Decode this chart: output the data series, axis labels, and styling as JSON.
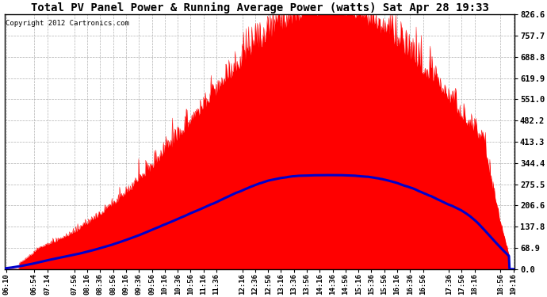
{
  "title": "Total PV Panel Power & Running Average Power (watts) Sat Apr 28 19:33",
  "copyright": "Copyright 2012 Cartronics.com",
  "bg_color": "#ffffff",
  "plot_bg_color": "#ffffff",
  "grid_color": "#aaaaaa",
  "fill_color": "#ff0000",
  "line_color": "#0000cc",
  "yticks": [
    0.0,
    68.9,
    137.8,
    206.6,
    275.5,
    344.4,
    413.3,
    482.2,
    551.0,
    619.9,
    688.8,
    757.7,
    826.6
  ],
  "ylim": [
    0.0,
    826.6
  ],
  "xtick_labels": [
    "06:10",
    "06:54",
    "07:14",
    "07:56",
    "08:16",
    "08:36",
    "08:56",
    "09:16",
    "09:36",
    "09:56",
    "10:16",
    "10:36",
    "10:56",
    "11:16",
    "11:36",
    "12:16",
    "12:36",
    "12:56",
    "13:16",
    "13:36",
    "13:56",
    "14:16",
    "14:36",
    "14:56",
    "15:16",
    "15:36",
    "15:56",
    "16:16",
    "16:36",
    "16:56",
    "17:36",
    "17:56",
    "18:16",
    "18:56",
    "19:16"
  ]
}
